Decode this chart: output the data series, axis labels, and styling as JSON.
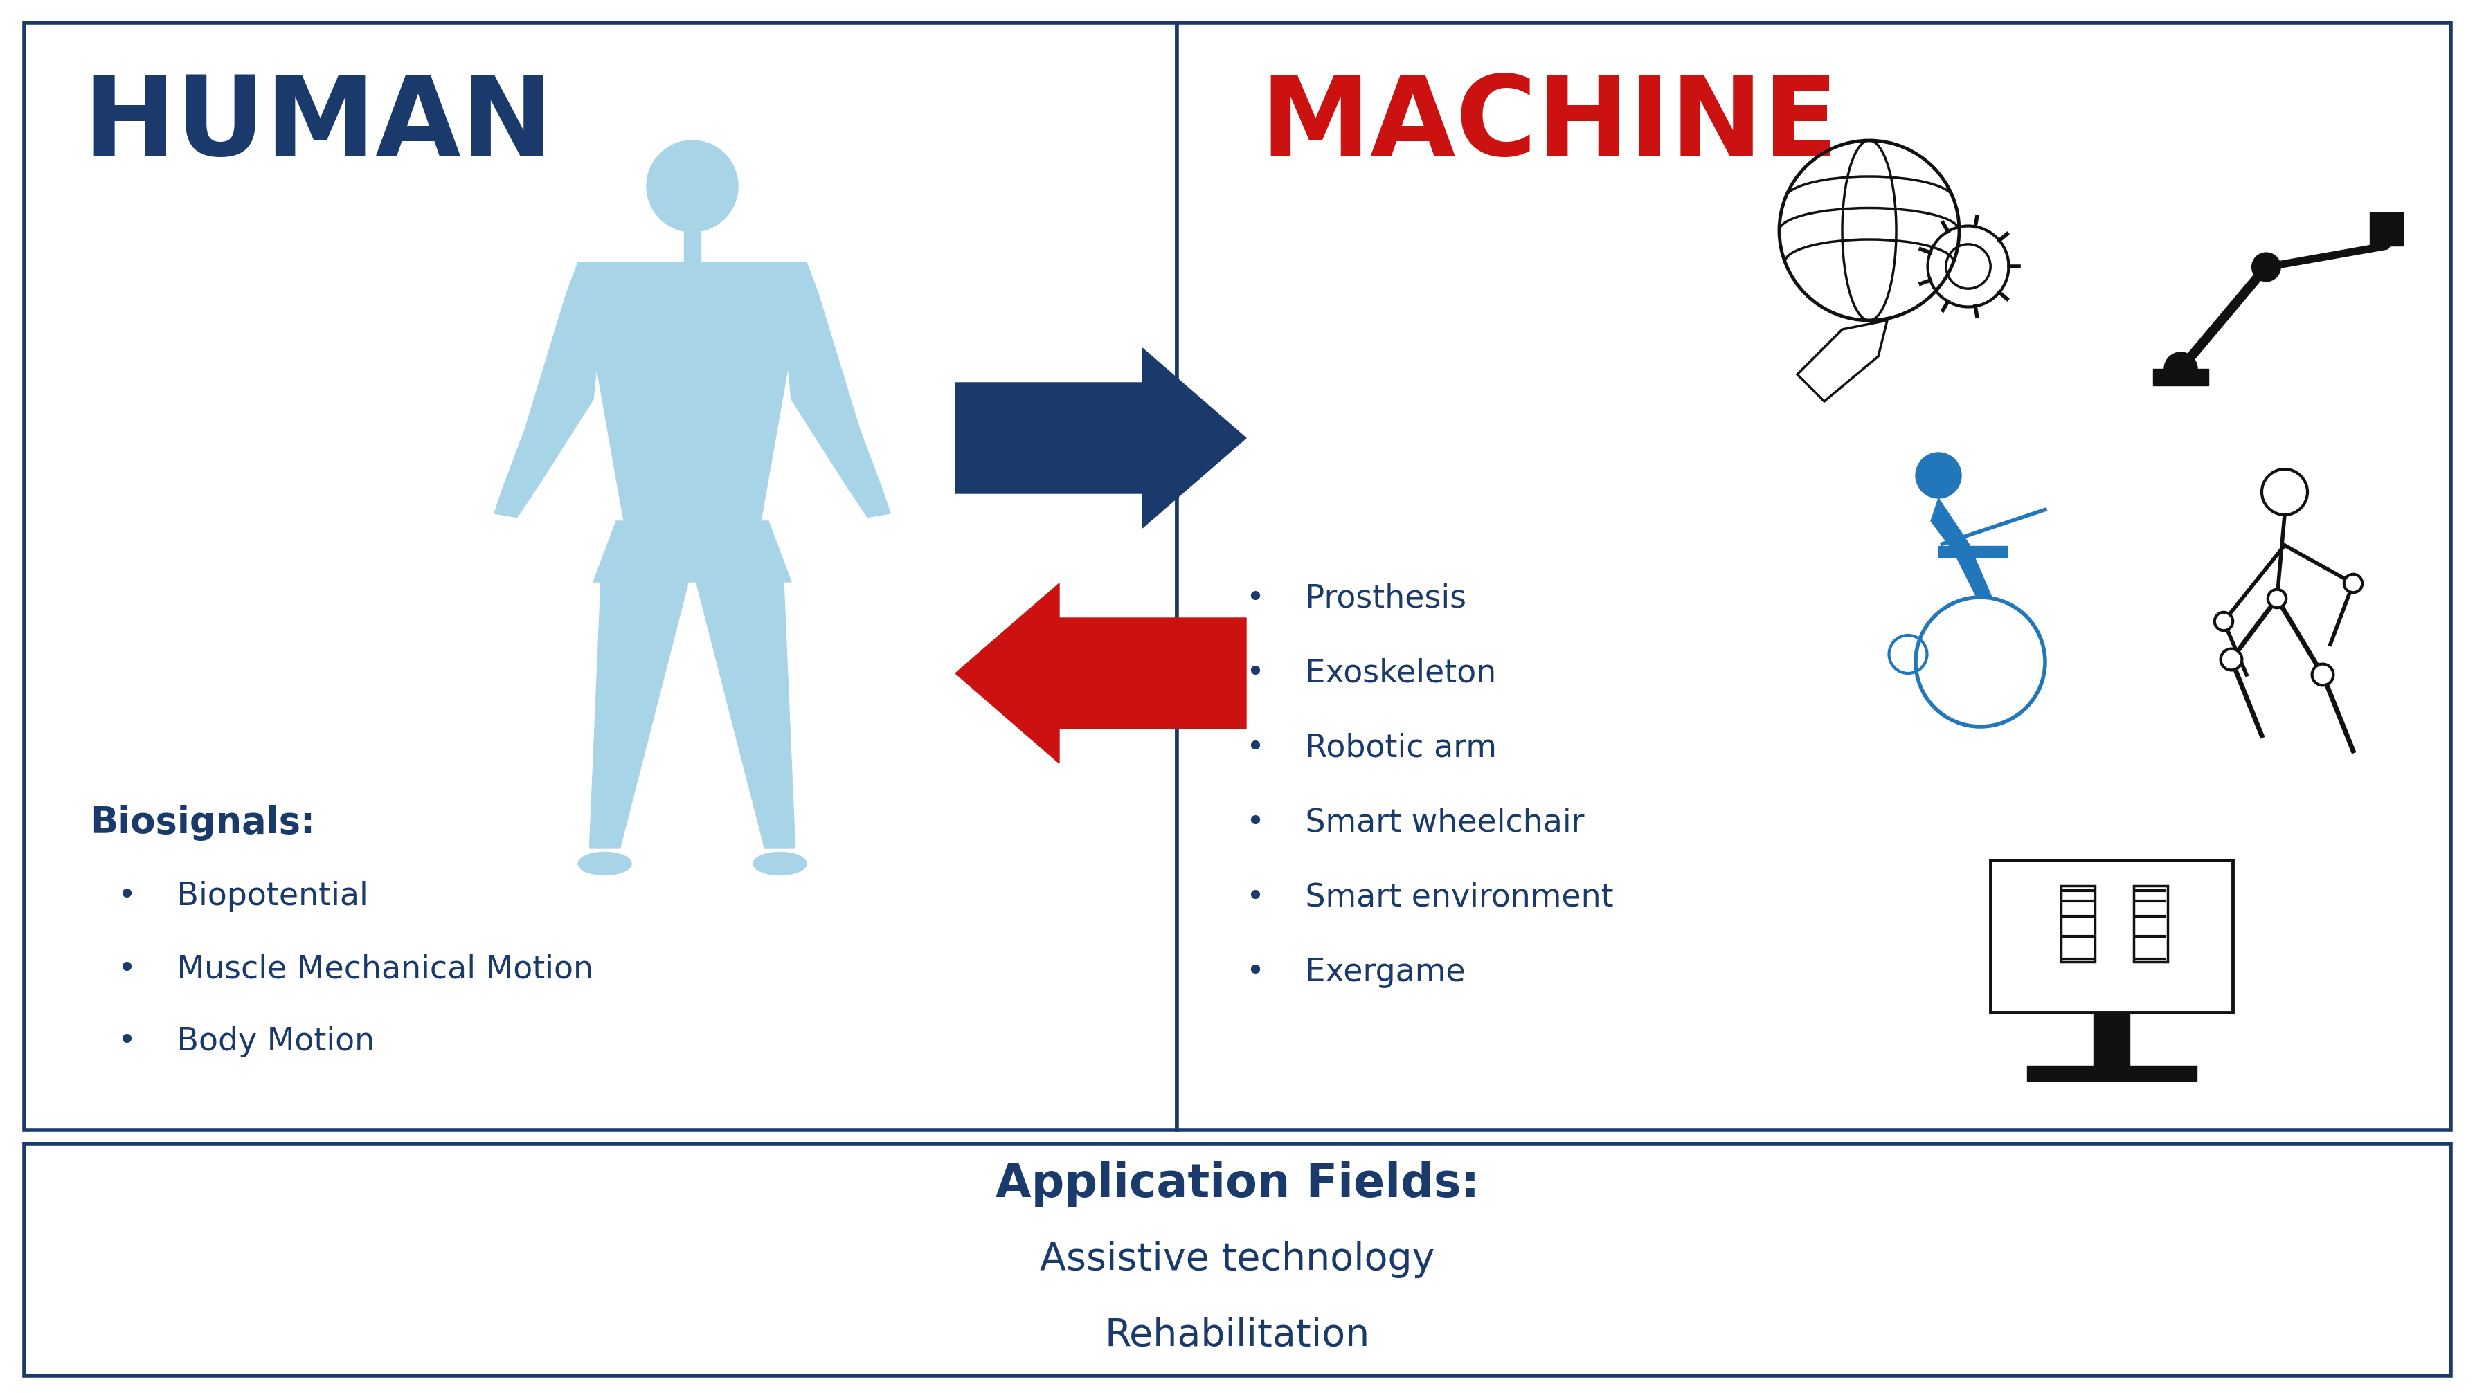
{
  "bg_color": "#ffffff",
  "box_line_color": "#1a3a6b",
  "human_title": "HUMAN",
  "human_title_color": "#1a3a6b",
  "machine_title": "MACHINE",
  "machine_title_color": "#cc1111",
  "human_body_color": "#a8d4e8",
  "arrow_right_color": "#1a3a6b",
  "arrow_left_color": "#cc1111",
  "biosignals_label": "Biosignals:",
  "biosignals_items": [
    "Biopotential",
    "Muscle Mechanical Motion",
    "Body Motion"
  ],
  "machine_items": [
    "Prosthesis",
    "Exoskeleton",
    "Robotic arm",
    "Smart wheelchair",
    "Smart environment",
    "Exergame"
  ],
  "app_fields_title": "Application Fields:",
  "app_fields_items": [
    "Assistive technology",
    "Rehabilitation"
  ],
  "text_color": "#1a3a6b",
  "icon_color": "#111111",
  "wheelchair_color": "#2277bb"
}
